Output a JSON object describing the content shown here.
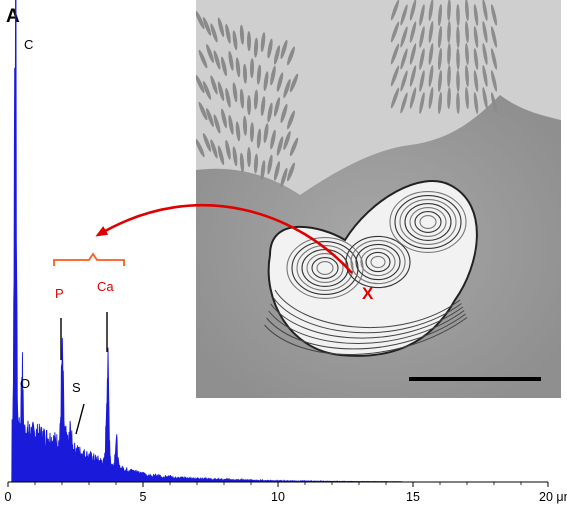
{
  "panel_label": "A",
  "colors": {
    "spectrum": "#1a1adb",
    "annotation_red": "#e00000",
    "bracket": "#ff5a1a",
    "axis": "#000000",
    "micrograph_bg": "#9c9c9c"
  },
  "micrograph": {
    "marker_label": "X",
    "scale_bar_visible": true
  },
  "chart_data": {
    "type": "line",
    "title": "",
    "xlabel": "",
    "ylabel": "",
    "x_unit_label": "μm",
    "xlim": [
      0,
      20
    ],
    "x_ticks": [
      0,
      5,
      10,
      15,
      20
    ],
    "x_tick_labels": [
      "0",
      "5",
      "10",
      "15",
      "20 μm"
    ],
    "ylim": [
      0,
      100
    ],
    "grid": false,
    "peaks": [
      {
        "element": "C",
        "x": 0.27,
        "y": 100
      },
      {
        "element": "O",
        "x": 0.52,
        "y": 14.5
      },
      {
        "element": "P",
        "x": 2.01,
        "y": 18.5
      },
      {
        "element": "S",
        "x": 2.31,
        "y": 4
      },
      {
        "element": "Ca",
        "x": 3.69,
        "y": 21.5
      }
    ],
    "annotations": [
      {
        "text": "C",
        "color": "black"
      },
      {
        "text": "O",
        "color": "black"
      },
      {
        "text": "S",
        "color": "black"
      },
      {
        "text": "P",
        "color": "red"
      },
      {
        "text": "Ca",
        "color": "red"
      }
    ]
  }
}
